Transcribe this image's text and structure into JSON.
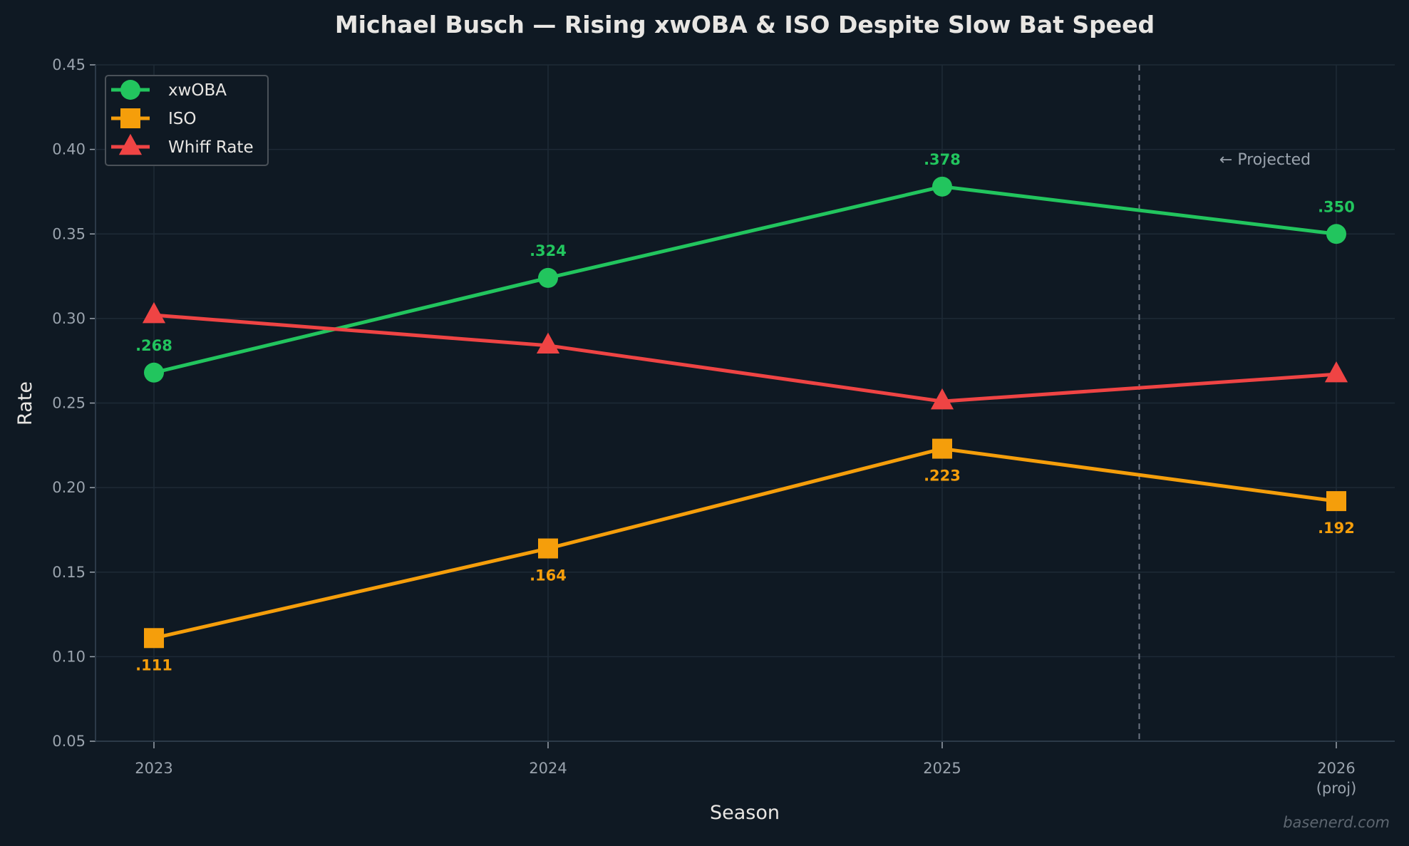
{
  "chart_data": {
    "type": "line",
    "title": "Michael Busch — Rising xwOBA & ISO Despite Slow Bat Speed",
    "xlabel": "Season",
    "ylabel": "Rate",
    "categories": [
      "2023",
      "2024",
      "2025",
      "2026"
    ],
    "category_sublabels": [
      "",
      "",
      "",
      "(proj)"
    ],
    "ylim": [
      0.05,
      0.45
    ],
    "yticks": [
      "0.05",
      "0.10",
      "0.15",
      "0.20",
      "0.25",
      "0.30",
      "0.35",
      "0.40",
      "0.45"
    ],
    "grid": true,
    "legend_position": "top-left",
    "projection_divider": {
      "x": 2025.5,
      "label": "← Projected"
    },
    "series": [
      {
        "name": "xwOBA",
        "color": "#22c55e",
        "marker": "circle",
        "values": [
          0.268,
          0.324,
          0.378,
          0.35
        ],
        "labels": [
          ".268",
          ".324",
          ".378",
          ".350"
        ],
        "label_side": "above"
      },
      {
        "name": "ISO",
        "color": "#f59e0b",
        "marker": "square",
        "values": [
          0.111,
          0.164,
          0.223,
          0.192
        ],
        "labels": [
          ".111",
          ".164",
          ".223",
          ".192"
        ],
        "label_side": "below"
      },
      {
        "name": "Whiff Rate",
        "color": "#ef4444",
        "marker": "triangle",
        "values": [
          0.302,
          0.284,
          0.251,
          0.267
        ],
        "labels": []
      }
    ],
    "watermark": "basenerd.com"
  }
}
